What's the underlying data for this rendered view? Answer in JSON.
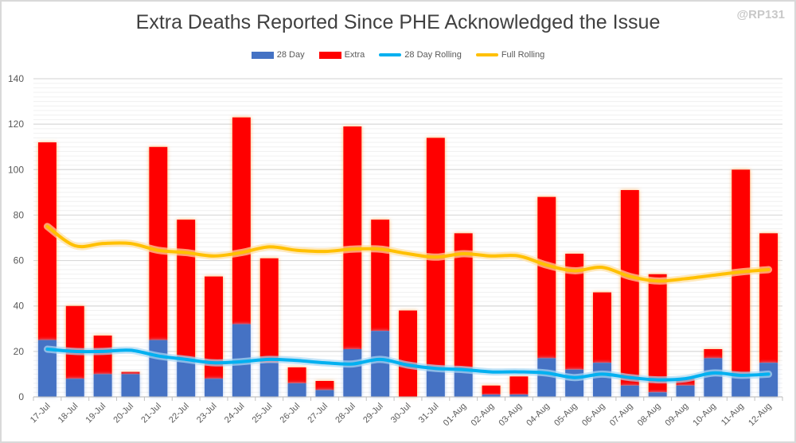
{
  "chart_data": {
    "type": "bar",
    "title": "Extra Deaths Reported Since PHE Acknowledged the Issue",
    "watermark": "@RP131",
    "stacked": true,
    "ylim": [
      0,
      140
    ],
    "yticks": [
      0,
      20,
      40,
      60,
      80,
      100,
      120,
      140
    ],
    "grid": true,
    "legend_position": "top",
    "categories": [
      "17-Jul",
      "18-Jul",
      "19-Jul",
      "20-Jul",
      "21-Jul",
      "22-Jul",
      "23-Jul",
      "24-Jul",
      "25-Jul",
      "26-Jul",
      "27-Jul",
      "28-Jul",
      "29-Jul",
      "30-Jul",
      "31-Jul",
      "01-Aug",
      "02-Aug",
      "03-Aug",
      "04-Aug",
      "05-Aug",
      "06-Aug",
      "07-Aug",
      "08-Aug",
      "09-Aug",
      "10-Aug",
      "11-Aug",
      "12-Aug"
    ],
    "series": [
      {
        "name": "28 Day",
        "type": "bar",
        "color": "#4472c4",
        "values": [
          25,
          8,
          10,
          10,
          25,
          17,
          8,
          32,
          15,
          6,
          3,
          21,
          29,
          0,
          13,
          12,
          1,
          1,
          17,
          12,
          15,
          5,
          2,
          5,
          17,
          10,
          15
        ]
      },
      {
        "name": "Extra",
        "type": "bar",
        "color": "#ff0000",
        "values": [
          87,
          32,
          17,
          1,
          85,
          61,
          45,
          91,
          46,
          7,
          4,
          98,
          49,
          38,
          101,
          60,
          4,
          8,
          71,
          51,
          31,
          86,
          52,
          3,
          4,
          90,
          57
        ]
      },
      {
        "name": "28 Day Rolling",
        "type": "line",
        "color": "#00b0f0",
        "values": [
          21,
          20,
          20,
          20.5,
          18,
          16.5,
          15,
          15.5,
          16.5,
          16,
          15,
          14.5,
          16.5,
          14,
          12.5,
          12,
          11,
          11,
          10.5,
          8.5,
          10,
          8.5,
          7.5,
          8,
          10.5,
          9.5,
          10
        ]
      },
      {
        "name": "Full Rolling",
        "type": "line",
        "color": "#ffc000",
        "values": [
          75,
          66.5,
          67.5,
          67.5,
          64.5,
          63.5,
          62,
          63.5,
          66,
          64.5,
          64,
          65,
          65,
          63,
          61.5,
          63,
          62,
          62,
          58,
          55.5,
          57,
          53,
          51,
          52,
          53.5,
          55,
          56
        ]
      }
    ]
  }
}
